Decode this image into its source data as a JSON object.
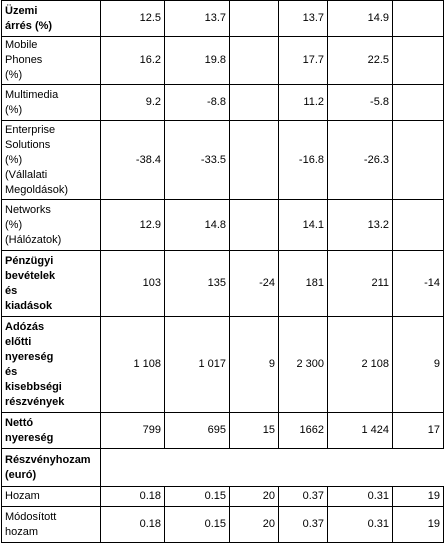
{
  "rows": [
    {
      "label": "Üzemi\nárrés (%)",
      "bold": true,
      "values": [
        "12.5",
        "13.7",
        "",
        "13.7",
        "14.9",
        ""
      ]
    },
    {
      "label": "Mobile\nPhones\n(%)",
      "bold": false,
      "values": [
        "16.2",
        "19.8",
        "",
        "17.7",
        "22.5",
        ""
      ]
    },
    {
      "label": "Multimedia\n(%)",
      "bold": false,
      "values": [
        "9.2",
        "-8.8",
        "",
        "11.2",
        "-5.8",
        ""
      ]
    },
    {
      "label": "Enterprise\nSolutions\n(%)\n(Vállalati\nMegoldások)",
      "bold": false,
      "values": [
        "-38.4",
        "-33.5",
        "",
        "-16.8",
        "-26.3",
        ""
      ]
    },
    {
      "label": "Networks\n(%)\n(Hálózatok)",
      "bold": false,
      "values": [
        "12.9",
        "14.8",
        "",
        "14.1",
        "13.2",
        ""
      ]
    },
    {
      "label": "Pénzügyi\nbevételek\nés\nkiadások",
      "bold": true,
      "values": [
        "103",
        "135",
        "-24",
        "181",
        "211",
        "-14"
      ]
    },
    {
      "label": "Adózás\nelőtti\nnyereség\nés\nkisebbségi\nrészvények",
      "bold": true,
      "values": [
        "1 108",
        "1 017",
        "9",
        "2 300",
        "2 108",
        "9"
      ]
    },
    {
      "label": "Nettó\nnyereség",
      "bold": true,
      "values": [
        "799",
        "695",
        "15",
        "1662",
        "1 424",
        "17"
      ]
    },
    {
      "label": "Részvényhozam\n(euró)",
      "bold": true,
      "span": true,
      "values": []
    },
    {
      "label": "Hozam",
      "bold": false,
      "values": [
        "0.18",
        "0.15",
        "20",
        "0.37",
        "0.31",
        "19"
      ]
    },
    {
      "label": "Módosított\nhozam",
      "bold": false,
      "values": [
        "0.18",
        "0.15",
        "20",
        "0.37",
        "0.31",
        "19"
      ]
    }
  ]
}
